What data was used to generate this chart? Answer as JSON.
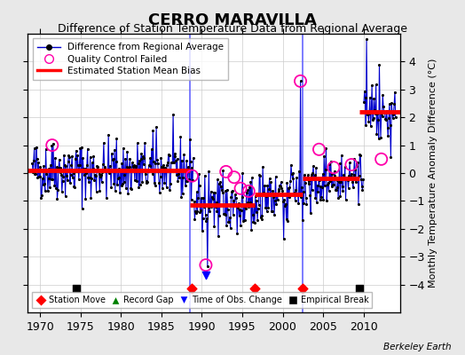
{
  "title": "CERRO MARAVILLA",
  "subtitle": "Difference of Station Temperature Data from Regional Average",
  "ylabel": "Monthly Temperature Anomaly Difference (°C)",
  "xlabel_bottom": "Berkeley Earth",
  "background_color": "#e8e8e8",
  "plot_bg_color": "#ffffff",
  "ylim": [
    -5,
    5
  ],
  "xlim": [
    1968.5,
    2014.5
  ],
  "yticks": [
    -4,
    -3,
    -2,
    -1,
    0,
    1,
    2,
    3,
    4
  ],
  "xticks": [
    1970,
    1975,
    1980,
    1985,
    1990,
    1995,
    2000,
    2005,
    2010
  ],
  "segment_bias": [
    {
      "x_start": 1968.5,
      "x_end": 1988.5,
      "bias": 0.1
    },
    {
      "x_start": 1988.5,
      "x_end": 1996.5,
      "bias": -1.15
    },
    {
      "x_start": 1996.5,
      "x_end": 2002.5,
      "bias": -0.75
    },
    {
      "x_start": 2002.5,
      "x_end": 2009.5,
      "bias": -0.2
    },
    {
      "x_start": 2009.5,
      "x_end": 2014.5,
      "bias": 2.2
    }
  ],
  "station_moves": [
    1988.7,
    1996.5,
    2002.5
  ],
  "empirical_breaks": [
    1974.5,
    2009.5
  ],
  "obs_changes": [
    1990.5
  ],
  "vertical_lines": [
    1988.5,
    2002.5
  ],
  "qc_fail_approx": [
    [
      1971.5,
      1.0
    ],
    [
      1988.8,
      -0.1
    ],
    [
      1990.5,
      -3.3
    ],
    [
      1993.0,
      0.05
    ],
    [
      1994.0,
      -0.15
    ],
    [
      1994.8,
      -0.55
    ],
    [
      1995.8,
      -0.65
    ],
    [
      2002.2,
      3.3
    ],
    [
      2004.5,
      0.85
    ],
    [
      2006.3,
      0.2
    ],
    [
      2008.5,
      0.3
    ],
    [
      2012.2,
      0.5
    ]
  ],
  "line_color": "#0000cc",
  "dot_color": "#000000",
  "bias_color": "#ff0000",
  "qc_color": "#ff00aa",
  "vline_color": "#6666ff",
  "grid_color": "#cccccc",
  "title_fontsize": 13,
  "subtitle_fontsize": 9,
  "tick_fontsize": 9,
  "ylabel_fontsize": 8
}
